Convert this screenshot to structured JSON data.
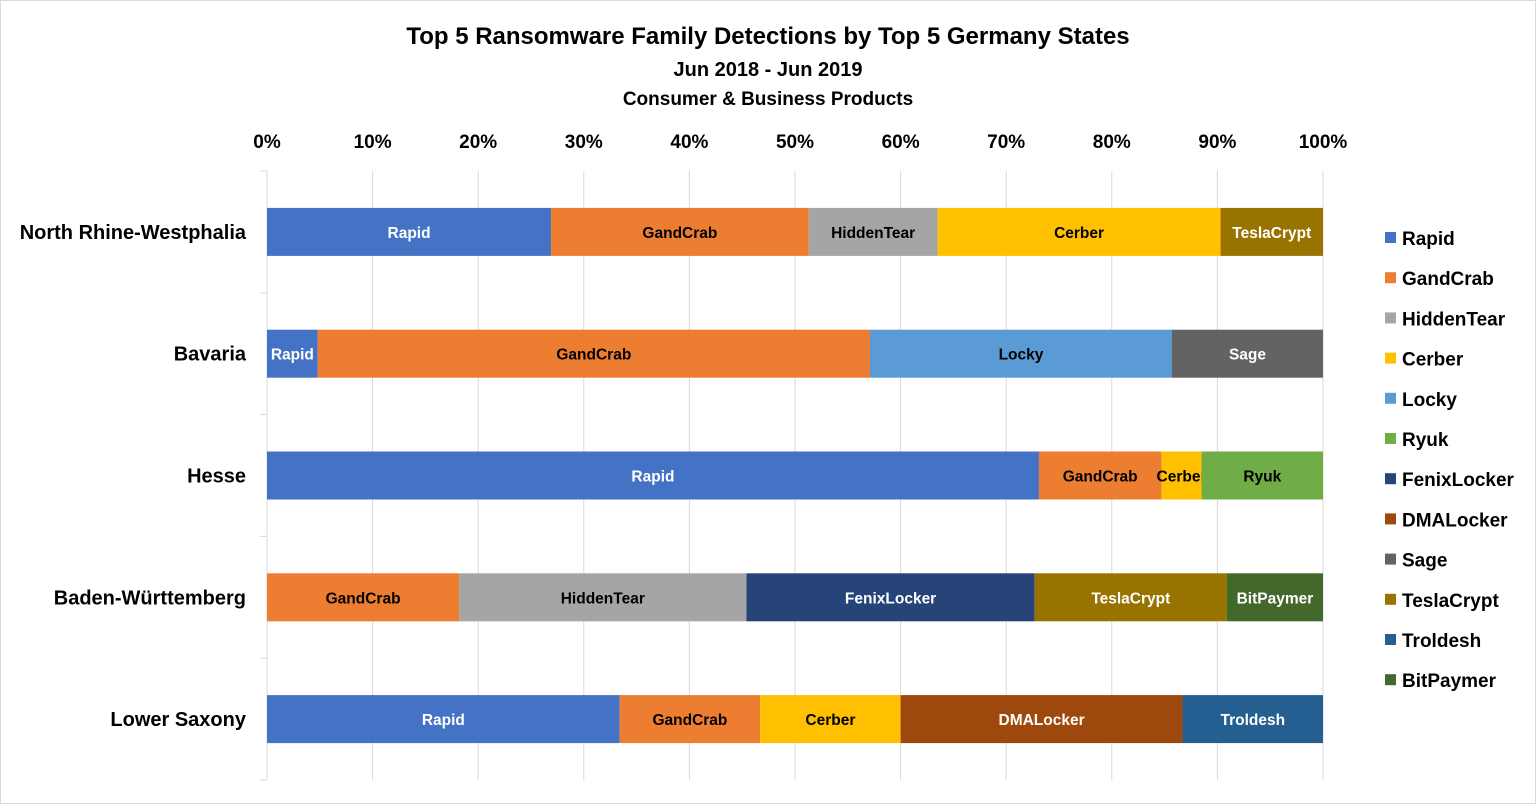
{
  "chart_data": {
    "type": "bar",
    "orientation": "horizontal",
    "stacked": "percent",
    "title": "Top 5 Ransomware Family Detections by Top 5 Germany States",
    "subtitle": "Jun 2018 - Jun 2019",
    "subtitle2": "Consumer & Business Products",
    "x_ticks": [
      "0%",
      "10%",
      "20%",
      "30%",
      "40%",
      "50%",
      "60%",
      "70%",
      "80%",
      "90%",
      "100%"
    ],
    "xlim": [
      0,
      100
    ],
    "x_axis_position": "top",
    "grid": true,
    "legend_position": "right",
    "categories": [
      "North Rhine-Westphalia",
      "Bavaria",
      "Hesse",
      "Baden-Württemberg",
      "Lower Saxony"
    ],
    "series": [
      {
        "name": "Rapid",
        "color": "#4472C4",
        "label_color": "#ffffff",
        "values": [
          26.9,
          4.8,
          73.1,
          0,
          33.4
        ]
      },
      {
        "name": "GandCrab",
        "color": "#ED7D31",
        "label_color": "#000000",
        "values": [
          24.4,
          52.3,
          11.6,
          18.2,
          13.3
        ]
      },
      {
        "name": "HiddenTear",
        "color": "#A5A5A5",
        "label_color": "#000000",
        "values": [
          12.2,
          0,
          0,
          27.2,
          0
        ]
      },
      {
        "name": "Cerber",
        "color": "#FFC000",
        "label_color": "#000000",
        "values": [
          26.8,
          0,
          3.8,
          0,
          13.3
        ]
      },
      {
        "name": "Locky",
        "color": "#5B9BD5",
        "label_color": "#000000",
        "values": [
          0,
          28.6,
          0,
          0,
          0
        ]
      },
      {
        "name": "Ryuk",
        "color": "#70AD47",
        "label_color": "#000000",
        "values": [
          0,
          0,
          11.5,
          0,
          0
        ]
      },
      {
        "name": "FenixLocker",
        "color": "#264478",
        "label_color": "#ffffff",
        "values": [
          0,
          0,
          0,
          27.3,
          0
        ]
      },
      {
        "name": "DMALocker",
        "color": "#9E480E",
        "label_color": "#ffffff",
        "values": [
          0,
          0,
          0,
          0,
          26.7
        ]
      },
      {
        "name": "Sage",
        "color": "#636363",
        "label_color": "#ffffff",
        "values": [
          0,
          14.3,
          0,
          0,
          0
        ]
      },
      {
        "name": "TeslaCrypt",
        "color": "#997300",
        "label_color": "#ffffff",
        "values": [
          9.7,
          0,
          0,
          18.2,
          0
        ]
      },
      {
        "name": "Troldesh",
        "color": "#255E91",
        "label_color": "#ffffff",
        "values": [
          0,
          0,
          0,
          0,
          13.3
        ]
      },
      {
        "name": "BitPaymer",
        "color": "#43682B",
        "label_color": "#ffffff",
        "values": [
          0,
          0,
          0,
          9.1,
          0
        ]
      }
    ]
  }
}
